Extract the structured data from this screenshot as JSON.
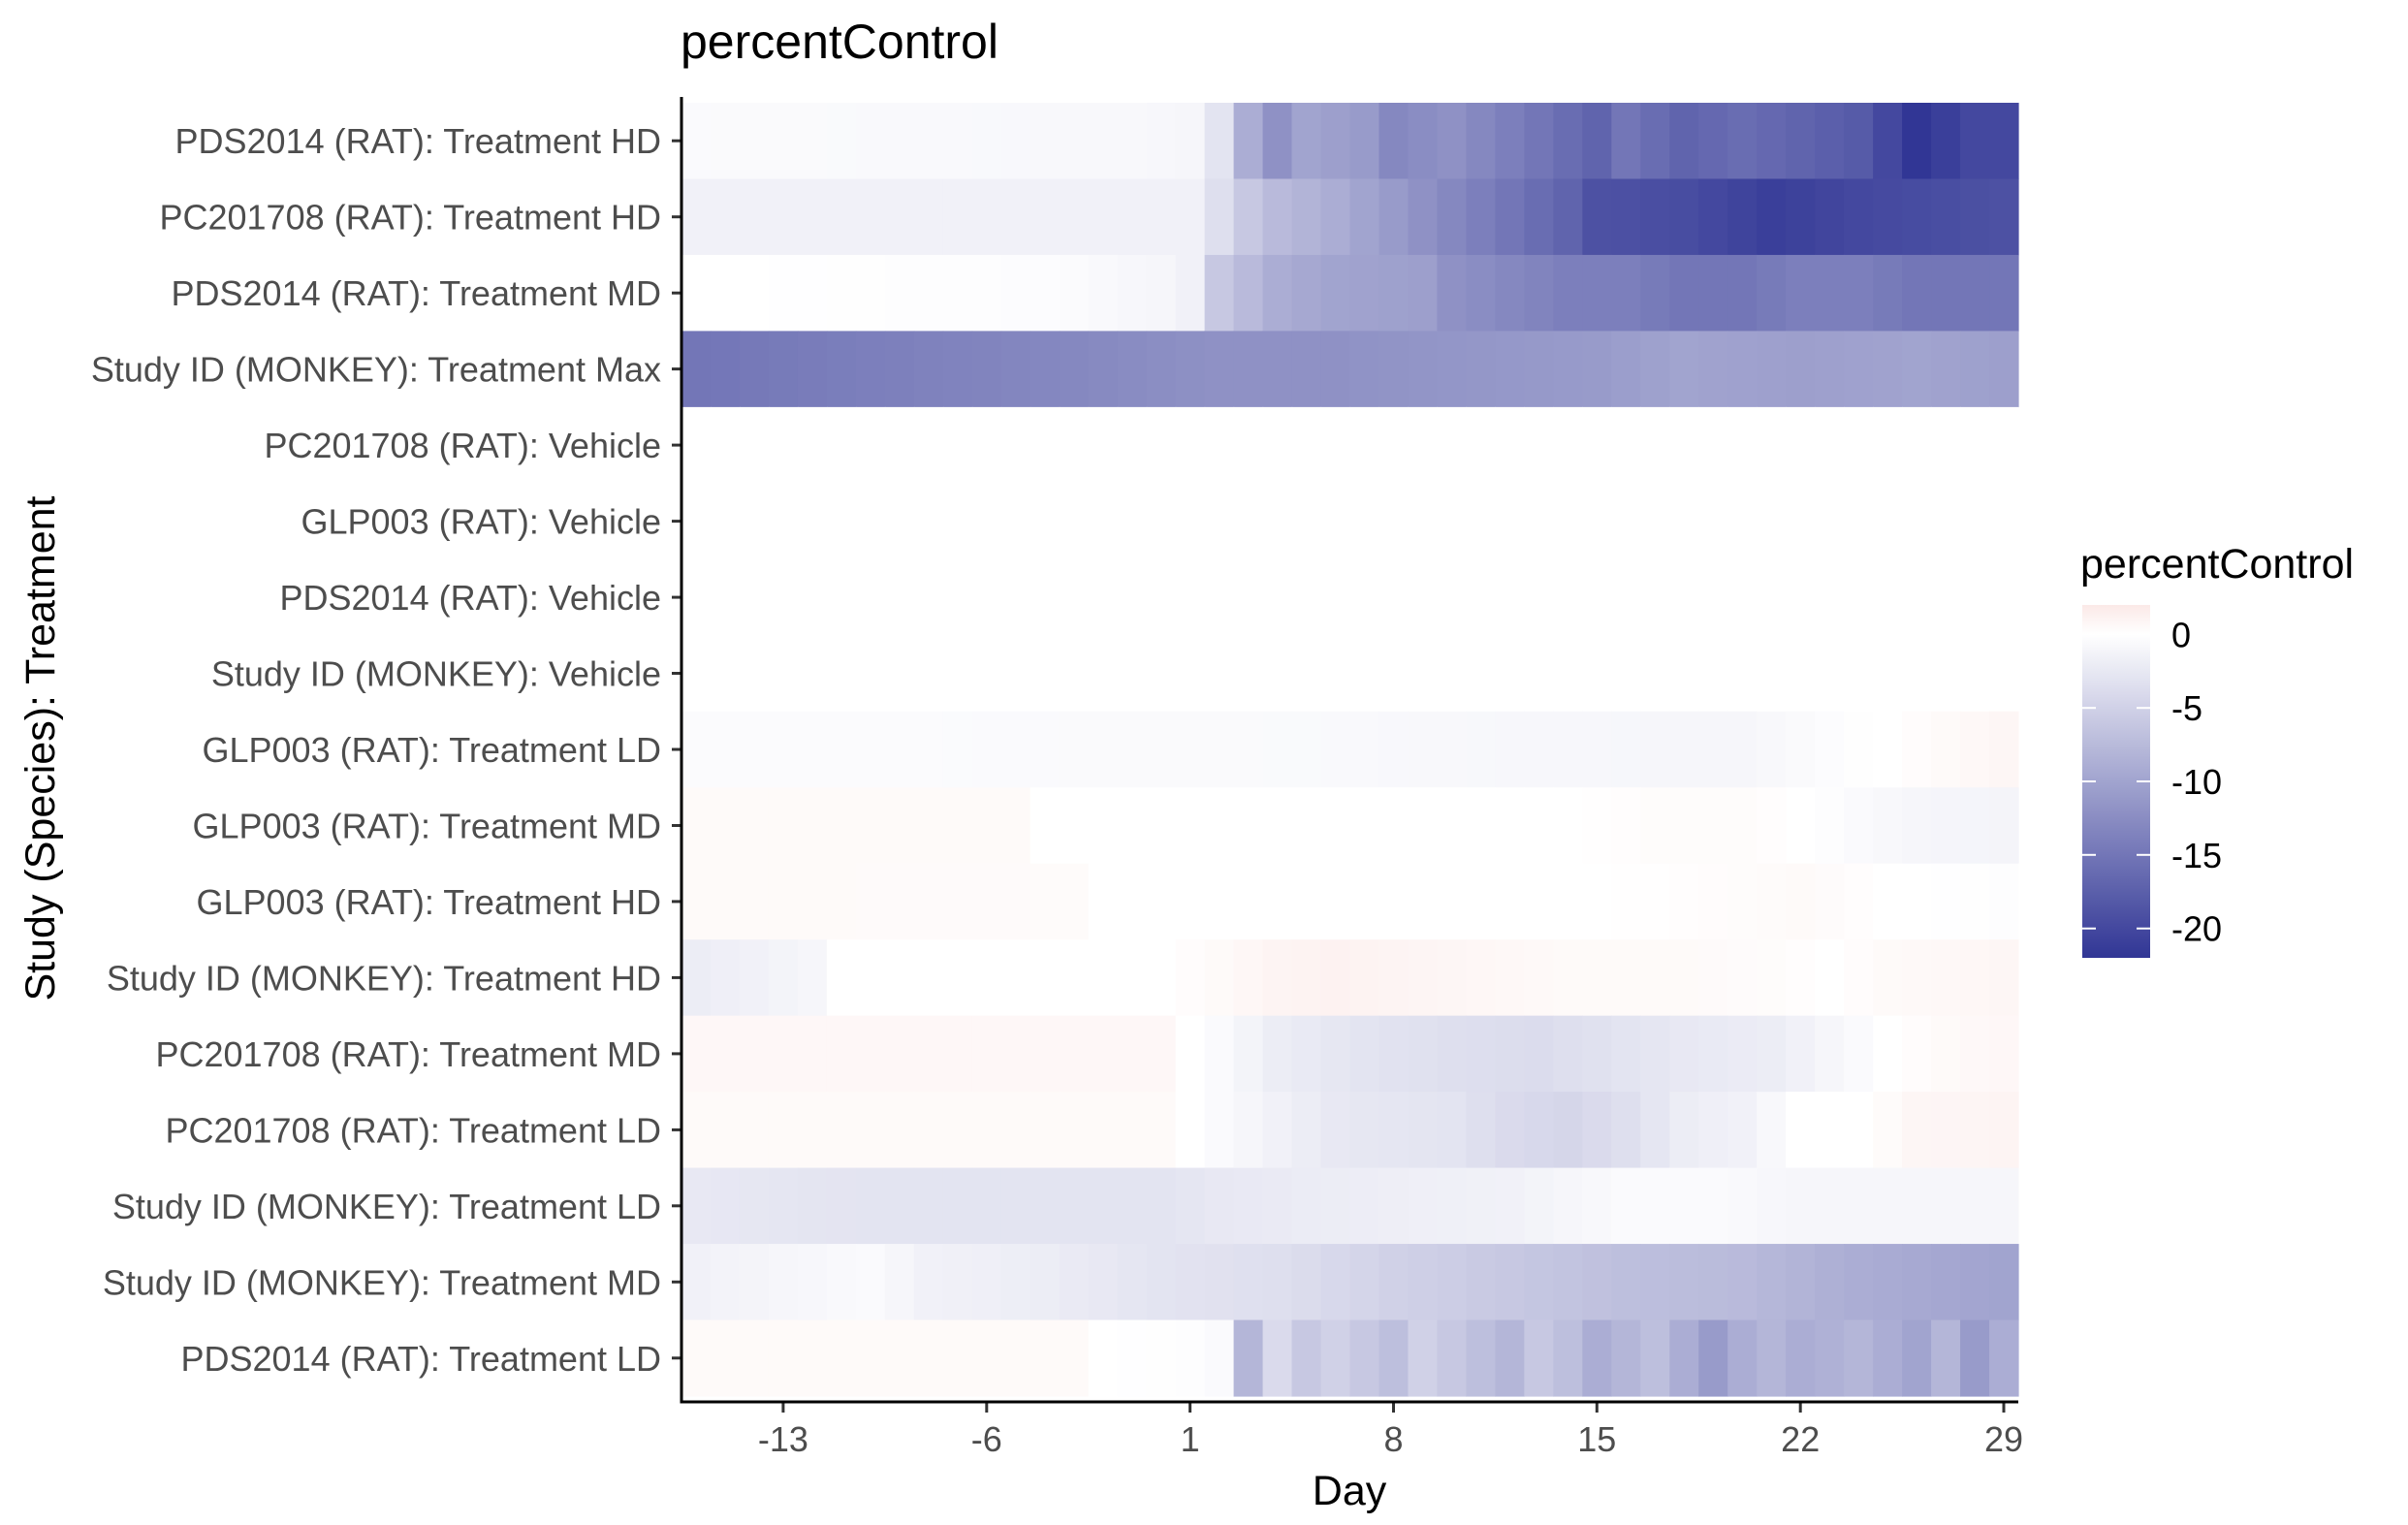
{
  "chart_data": {
    "type": "heatmap",
    "title": "percentControl",
    "xlabel": "Day",
    "ylabel": "Study (Species): Treatment",
    "x_range": [
      -16,
      29
    ],
    "x_ticks": [
      -13,
      -6,
      1,
      8,
      15,
      22,
      29
    ],
    "x_tick_labels": [
      "-13",
      "-6",
      "1",
      "8",
      "15",
      "22",
      "29"
    ],
    "rows": [
      "PDS2014 (RAT): Treatment HD",
      "PC201708 (RAT): Treatment HD",
      "PDS2014 (RAT): Treatment MD",
      "Study ID (MONKEY): Treatment Max",
      "PC201708 (RAT): Vehicle",
      "GLP003 (RAT): Vehicle",
      "PDS2014 (RAT): Vehicle",
      "Study ID (MONKEY): Vehicle",
      "GLP003 (RAT): Treatment LD",
      "GLP003 (RAT): Treatment MD",
      "GLP003 (RAT): Treatment HD",
      "Study ID (MONKEY): Treatment HD",
      "PC201708 (RAT): Treatment MD",
      "PC201708 (RAT): Treatment LD",
      "Study ID (MONKEY): Treatment LD",
      "Study ID (MONKEY): Treatment MD",
      "PDS2014 (RAT): Treatment LD"
    ],
    "series": [
      {
        "name": "PDS2014 (RAT): Treatment HD",
        "keypoints": [
          [
            -16,
            -0.5
          ],
          [
            -1,
            -0.8
          ],
          [
            1,
            -1
          ],
          [
            2,
            -3
          ],
          [
            3,
            -9
          ],
          [
            4,
            -12
          ],
          [
            5,
            -10
          ],
          [
            7,
            -11
          ],
          [
            8,
            -13
          ],
          [
            10,
            -12
          ],
          [
            12,
            -14
          ],
          [
            14,
            -16
          ],
          [
            15,
            -17
          ],
          [
            16,
            -15
          ],
          [
            18,
            -17
          ],
          [
            20,
            -16
          ],
          [
            22,
            -17
          ],
          [
            24,
            -18
          ],
          [
            25,
            -20
          ],
          [
            26,
            -22
          ],
          [
            28,
            -20
          ],
          [
            29,
            -20
          ]
        ]
      },
      {
        "name": "PC201708 (RAT): Treatment HD",
        "keypoints": [
          [
            -16,
            -1.5
          ],
          [
            1,
            -1.5
          ],
          [
            2,
            -3.5
          ],
          [
            3,
            -6
          ],
          [
            4,
            -7.5
          ],
          [
            6,
            -9
          ],
          [
            8,
            -11
          ],
          [
            10,
            -13
          ],
          [
            12,
            -15
          ],
          [
            14,
            -17
          ],
          [
            15,
            -19
          ],
          [
            18,
            -19.5
          ],
          [
            21,
            -21
          ],
          [
            24,
            -20
          ],
          [
            29,
            -19
          ]
        ]
      },
      {
        "name": "PDS2014 (RAT): Treatment MD",
        "keypoints": [
          [
            -16,
            0
          ],
          [
            -4,
            -0.3
          ],
          [
            0,
            -1
          ],
          [
            1,
            -1.5
          ],
          [
            2,
            -6
          ],
          [
            4,
            -9
          ],
          [
            6,
            -10
          ],
          [
            9,
            -10.5
          ],
          [
            10,
            -12
          ],
          [
            12,
            -13
          ],
          [
            14,
            -14
          ],
          [
            16,
            -14
          ],
          [
            18,
            -15
          ],
          [
            20,
            -15
          ],
          [
            22,
            -14
          ],
          [
            24,
            -14
          ],
          [
            26,
            -15
          ],
          [
            29,
            -15
          ]
        ]
      },
      {
        "name": "Study ID (MONKEY): Treatment Max",
        "keypoints": [
          [
            -16,
            -15
          ],
          [
            -10,
            -14
          ],
          [
            -3,
            -13
          ],
          [
            2,
            -12
          ],
          [
            6,
            -12
          ],
          [
            10,
            -11.5
          ],
          [
            15,
            -11
          ],
          [
            18,
            -10
          ],
          [
            22,
            -10.5
          ],
          [
            26,
            -10
          ],
          [
            29,
            -10.5
          ]
        ]
      },
      {
        "name": "PC201708 (RAT): Vehicle",
        "keypoints": [
          [
            -16,
            0
          ],
          [
            29,
            0
          ]
        ]
      },
      {
        "name": "GLP003 (RAT): Vehicle",
        "keypoints": [
          [
            -16,
            0
          ],
          [
            29,
            0
          ]
        ]
      },
      {
        "name": "PDS2014 (RAT): Vehicle",
        "keypoints": [
          [
            -16,
            0
          ],
          [
            29,
            0
          ]
        ]
      },
      {
        "name": "Study ID (MONKEY): Vehicle",
        "keypoints": [
          [
            -16,
            0
          ],
          [
            29,
            0
          ]
        ]
      },
      {
        "name": "GLP003 (RAT): Treatment LD",
        "keypoints": [
          [
            -16,
            -0.4
          ],
          [
            5,
            -0.6
          ],
          [
            10,
            -0.8
          ],
          [
            15,
            -0.9
          ],
          [
            20,
            -1
          ],
          [
            23,
            -0.3
          ],
          [
            25,
            0
          ],
          [
            27,
            0.5
          ],
          [
            29,
            0.8
          ]
        ]
      },
      {
        "name": "GLP003 (RAT): Treatment MD",
        "keypoints": [
          [
            -16,
            0.5
          ],
          [
            -5,
            0.5
          ],
          [
            -4,
            0
          ],
          [
            14,
            0
          ],
          [
            17,
            0.3
          ],
          [
            20,
            0.3
          ],
          [
            22,
            0
          ],
          [
            24,
            -0.5
          ],
          [
            26,
            -1
          ],
          [
            29,
            -1.2
          ]
        ]
      },
      {
        "name": "GLP003 (RAT): Treatment HD",
        "keypoints": [
          [
            -16,
            0.5
          ],
          [
            -3,
            0.4
          ],
          [
            -2,
            0
          ],
          [
            15,
            0
          ],
          [
            20,
            0.3
          ],
          [
            22,
            0.5
          ],
          [
            25,
            0
          ],
          [
            29,
            -0.2
          ]
        ]
      },
      {
        "name": "Study ID (MONKEY): Treatment HD",
        "keypoints": [
          [
            -16,
            -2
          ],
          [
            -14,
            -1.5
          ],
          [
            -12,
            -1
          ],
          [
            -11,
            0
          ],
          [
            0,
            0
          ],
          [
            2,
            0.5
          ],
          [
            4,
            1
          ],
          [
            6,
            1.2
          ],
          [
            8,
            1
          ],
          [
            10,
            0.8
          ],
          [
            14,
            0.5
          ],
          [
            18,
            0.5
          ],
          [
            21,
            0.3
          ],
          [
            23,
            0
          ],
          [
            25,
            0.5
          ],
          [
            29,
            0.8
          ]
        ]
      },
      {
        "name": "PC201708 (RAT): Treatment MD",
        "keypoints": [
          [
            -16,
            0.7
          ],
          [
            0,
            0.7
          ],
          [
            1,
            0
          ],
          [
            2,
            -0.5
          ],
          [
            4,
            -2
          ],
          [
            7,
            -3
          ],
          [
            10,
            -3.5
          ],
          [
            13,
            -3.8
          ],
          [
            16,
            -3
          ],
          [
            18,
            -2.5
          ],
          [
            21,
            -2
          ],
          [
            23,
            -1
          ],
          [
            25,
            0
          ],
          [
            27,
            0.5
          ],
          [
            29,
            0.7
          ]
        ]
      },
      {
        "name": "PC201708 (RAT): Treatment LD",
        "keypoints": [
          [
            -16,
            0.5
          ],
          [
            0,
            0.5
          ],
          [
            1,
            0
          ],
          [
            3,
            -1
          ],
          [
            6,
            -2.5
          ],
          [
            10,
            -3
          ],
          [
            12,
            -4
          ],
          [
            14,
            -4.5
          ],
          [
            16,
            -3.5
          ],
          [
            18,
            -2
          ],
          [
            20,
            -1.5
          ],
          [
            22,
            0
          ],
          [
            24,
            0
          ],
          [
            26,
            0.8
          ],
          [
            29,
            1
          ]
        ]
      },
      {
        "name": "Study ID (MONKEY): Treatment LD",
        "keypoints": [
          [
            -16,
            -2.5
          ],
          [
            -10,
            -3
          ],
          [
            0,
            -3
          ],
          [
            2,
            -2.5
          ],
          [
            6,
            -2
          ],
          [
            12,
            -1.5
          ],
          [
            16,
            -0.5
          ],
          [
            19,
            -0.5
          ],
          [
            22,
            -1
          ],
          [
            29,
            -1
          ]
        ]
      },
      {
        "name": "Study ID (MONKEY): Treatment MD",
        "keypoints": [
          [
            -16,
            -1.5
          ],
          [
            -13,
            -1
          ],
          [
            -10,
            -0.5
          ],
          [
            -8,
            -1.5
          ],
          [
            -4,
            -2
          ],
          [
            0,
            -3
          ],
          [
            4,
            -3.5
          ],
          [
            8,
            -5
          ],
          [
            12,
            -6
          ],
          [
            16,
            -7
          ],
          [
            20,
            -7.5
          ],
          [
            24,
            -9
          ],
          [
            29,
            -10
          ]
        ]
      },
      {
        "name": "PDS2014 (RAT): Treatment LD",
        "keypoints": [
          [
            -16,
            0.5
          ],
          [
            -3,
            0.5
          ],
          [
            -2,
            0
          ],
          [
            1,
            -0.2
          ],
          [
            2,
            -0.5
          ],
          [
            3,
            -8
          ],
          [
            4,
            -4
          ],
          [
            5,
            -6
          ],
          [
            6,
            -5
          ],
          [
            7,
            -6
          ],
          [
            8,
            -7
          ],
          [
            9,
            -5
          ],
          [
            10,
            -6
          ],
          [
            11,
            -7
          ],
          [
            12,
            -8
          ],
          [
            13,
            -6
          ],
          [
            14,
            -7
          ],
          [
            15,
            -9
          ],
          [
            16,
            -8
          ],
          [
            17,
            -7
          ],
          [
            18,
            -9
          ],
          [
            19,
            -11
          ],
          [
            20,
            -9
          ],
          [
            21,
            -8
          ],
          [
            22,
            -9
          ],
          [
            24,
            -8
          ],
          [
            26,
            -10
          ],
          [
            27,
            -8
          ],
          [
            28,
            -11
          ],
          [
            29,
            -9
          ]
        ]
      }
    ],
    "color_scale": {
      "title": "percentControl",
      "low_color": "#313695",
      "mid_color": "#ffffff",
      "high_color": "#fbe9e7",
      "domain": [
        -22,
        2
      ],
      "ticks": [
        0,
        -5,
        -10,
        -15,
        -20
      ],
      "tick_labels": [
        "0",
        "-5",
        "-10",
        "-15",
        "-20"
      ]
    },
    "legend_position": "right"
  }
}
